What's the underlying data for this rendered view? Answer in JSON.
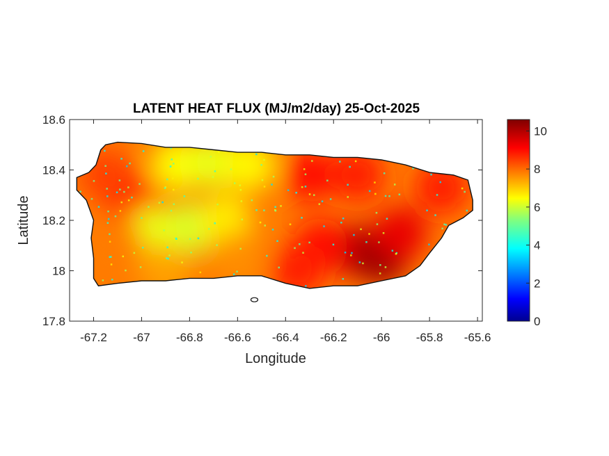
{
  "chart_data": {
    "type": "heatmap",
    "title": "LATENT HEAT FLUX (MJ/m2/day) 25-Oct-2025",
    "xlabel": "Longitude",
    "ylabel": "Latitude",
    "xlim": [
      -67.3,
      -65.58
    ],
    "ylim": [
      17.8,
      18.6
    ],
    "x_ticks": [
      -67.2,
      -67,
      -66.8,
      -66.6,
      -66.4,
      -66.2,
      -66,
      -65.8,
      -65.6
    ],
    "x_tick_labels": [
      "-67.2",
      "-67",
      "-66.8",
      "-66.6",
      "-66.4",
      "-66.2",
      "-66",
      "-65.8",
      "-65.6"
    ],
    "y_ticks": [
      17.8,
      18,
      18.2,
      18.4,
      18.6
    ],
    "y_tick_labels": [
      "17.8",
      "18",
      "18.2",
      "18.4",
      "18.6"
    ],
    "colorbar": {
      "colormap": "jet",
      "range": [
        0,
        10.6
      ],
      "ticks": [
        0,
        2,
        4,
        6,
        8,
        10
      ],
      "tick_labels": [
        "0",
        "2",
        "4",
        "6",
        "8",
        "10"
      ]
    },
    "grid": false,
    "region_outline": [
      [
        -67.27,
        18.37
      ],
      [
        -67.22,
        18.39
      ],
      [
        -67.19,
        18.42
      ],
      [
        -67.17,
        18.48
      ],
      [
        -67.15,
        18.5
      ],
      [
        -67.1,
        18.51
      ],
      [
        -67.0,
        18.505
      ],
      [
        -66.9,
        18.49
      ],
      [
        -66.8,
        18.49
      ],
      [
        -66.7,
        18.48
      ],
      [
        -66.6,
        18.47
      ],
      [
        -66.5,
        18.47
      ],
      [
        -66.4,
        18.46
      ],
      [
        -66.3,
        18.46
      ],
      [
        -66.2,
        18.45
      ],
      [
        -66.1,
        18.45
      ],
      [
        -66.0,
        18.44
      ],
      [
        -65.9,
        18.42
      ],
      [
        -65.8,
        18.39
      ],
      [
        -65.7,
        18.38
      ],
      [
        -65.64,
        18.36
      ],
      [
        -65.62,
        18.28
      ],
      [
        -65.62,
        18.24
      ],
      [
        -65.66,
        18.21
      ],
      [
        -65.72,
        18.18
      ],
      [
        -65.75,
        18.13
      ],
      [
        -65.8,
        18.07
      ],
      [
        -65.84,
        18.02
      ],
      [
        -65.9,
        17.98
      ],
      [
        -66.0,
        17.96
      ],
      [
        -66.1,
        17.94
      ],
      [
        -66.2,
        17.94
      ],
      [
        -66.3,
        17.93
      ],
      [
        -66.4,
        17.95
      ],
      [
        -66.5,
        17.98
      ],
      [
        -66.6,
        17.98
      ],
      [
        -66.7,
        17.97
      ],
      [
        -66.8,
        17.97
      ],
      [
        -66.9,
        17.96
      ],
      [
        -67.0,
        17.96
      ],
      [
        -67.1,
        17.95
      ],
      [
        -67.18,
        17.94
      ],
      [
        -67.2,
        17.97
      ],
      [
        -67.2,
        18.05
      ],
      [
        -67.21,
        18.13
      ],
      [
        -67.2,
        18.2
      ],
      [
        -67.23,
        18.28
      ],
      [
        -67.27,
        18.32
      ],
      [
        -67.27,
        18.37
      ]
    ],
    "intensity_zones": [
      {
        "lon": -66.1,
        "lat": 18.08,
        "value": 10.0
      },
      {
        "lon": -66.0,
        "lat": 18.05,
        "value": 10.3
      },
      {
        "lon": -65.92,
        "lat": 18.15,
        "value": 9.5
      },
      {
        "lon": -66.25,
        "lat": 18.1,
        "value": 9.2
      },
      {
        "lon": -66.35,
        "lat": 18.0,
        "value": 9.0
      },
      {
        "lon": -66.3,
        "lat": 18.38,
        "value": 9.2
      },
      {
        "lon": -66.1,
        "lat": 18.38,
        "value": 9.0
      },
      {
        "lon": -65.75,
        "lat": 18.33,
        "value": 9.0
      },
      {
        "lon": -67.05,
        "lat": 18.3,
        "value": 8.8
      },
      {
        "lon": -67.15,
        "lat": 18.38,
        "value": 8.6
      },
      {
        "lon": -66.85,
        "lat": 18.42,
        "value": 6.6
      },
      {
        "lon": -66.7,
        "lat": 18.43,
        "value": 6.4
      },
      {
        "lon": -66.55,
        "lat": 18.42,
        "value": 6.7
      },
      {
        "lon": -66.8,
        "lat": 18.17,
        "value": 6.2
      },
      {
        "lon": -66.95,
        "lat": 18.15,
        "value": 6.4
      },
      {
        "lon": -66.65,
        "lat": 18.2,
        "value": 6.8
      },
      {
        "lon": -66.6,
        "lat": 18.05,
        "value": 7.8
      },
      {
        "lon": -67.1,
        "lat": 18.1,
        "value": 8.0
      },
      {
        "lon": -66.9,
        "lat": 18.0,
        "value": 7.6
      }
    ]
  }
}
